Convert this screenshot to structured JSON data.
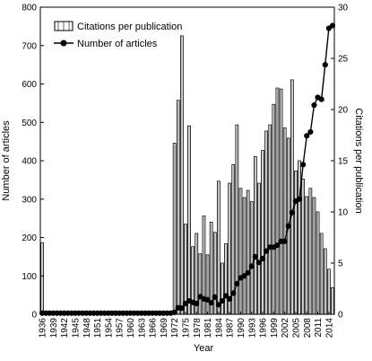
{
  "chart_data": {
    "type": "bar",
    "xlabel": "Year",
    "ylabel_left": "Number of articles",
    "ylabel_right": "Citations per publication",
    "ylim_left": [
      0,
      800
    ],
    "ylim_right": [
      0,
      30
    ],
    "yticks_left": [
      "0",
      "100",
      "200",
      "300",
      "400",
      "500",
      "600",
      "700",
      "800"
    ],
    "yticks_right": [
      "0",
      "5",
      "10",
      "15",
      "20",
      "25",
      "30"
    ],
    "xticks": [
      "1936",
      "1939",
      "1942",
      "1945",
      "1948",
      "1951",
      "1954",
      "1957",
      "1960",
      "1963",
      "1966",
      "1969",
      "1972",
      "1975",
      "1978",
      "1981",
      "1984",
      "1987",
      "1990",
      "1993",
      "1996",
      "1999",
      "2002",
      "2005",
      "2008",
      "2011",
      "2014"
    ],
    "legend_position": "top-left",
    "x": [
      1936,
      1937,
      1938,
      1939,
      1940,
      1941,
      1942,
      1943,
      1944,
      1945,
      1946,
      1947,
      1948,
      1949,
      1950,
      1951,
      1952,
      1953,
      1954,
      1955,
      1956,
      1957,
      1958,
      1959,
      1960,
      1961,
      1962,
      1963,
      1964,
      1965,
      1966,
      1967,
      1968,
      1969,
      1970,
      1971,
      1972,
      1973,
      1974,
      1975,
      1976,
      1977,
      1978,
      1979,
      1980,
      1981,
      1982,
      1983,
      1984,
      1985,
      1986,
      1987,
      1988,
      1989,
      1990,
      1991,
      1992,
      1993,
      1994,
      1995,
      1996,
      1997,
      1998,
      1999,
      2000,
      2001,
      2002,
      2003,
      2004,
      2005,
      2006,
      2007,
      2008,
      2009,
      2010,
      2011,
      2012,
      2013,
      2014,
      2015
    ],
    "series": [
      {
        "name": "Citations per publication",
        "axis": "right",
        "render": "bar",
        "values": [
          7,
          0,
          0,
          0,
          0,
          0,
          0,
          0,
          0,
          0,
          0,
          0,
          0,
          0,
          0,
          0,
          0,
          0,
          0,
          0,
          0,
          0,
          0,
          0,
          0,
          0,
          0,
          0,
          0,
          0,
          0,
          0,
          0,
          0,
          0,
          0,
          16.7,
          20.9,
          27.2,
          8.8,
          18.4,
          6.6,
          7.9,
          5.9,
          9.6,
          5.8,
          9.0,
          8.0,
          13.0,
          5.0,
          6.9,
          12.8,
          14.6,
          18.5,
          12.3,
          11.4,
          12.1,
          11.0,
          15.4,
          12.8,
          16.0,
          17.9,
          18.5,
          20.5,
          22.1,
          22.0,
          18.2,
          17.2,
          22.9,
          14.0,
          15.0,
          13.2,
          11.5,
          12.3,
          11.4,
          10.0,
          7.9,
          6.4,
          4.4,
          2.6
        ]
      },
      {
        "name": "Number of articles",
        "axis": "left",
        "render": "line",
        "values": [
          3,
          3,
          3,
          3,
          3,
          3,
          3,
          3,
          3,
          3,
          3,
          3,
          3,
          3,
          3,
          3,
          3,
          3,
          3,
          3,
          3,
          3,
          3,
          3,
          3,
          3,
          3,
          3,
          3,
          3,
          3,
          3,
          3,
          3,
          3,
          3,
          5,
          17,
          16,
          28,
          35,
          31,
          28,
          46,
          40,
          38,
          30,
          45,
          25,
          35,
          48,
          40,
          55,
          80,
          95,
          100,
          108,
          125,
          150,
          135,
          145,
          165,
          175,
          175,
          180,
          190,
          190,
          230,
          265,
          295,
          300,
          390,
          465,
          475,
          545,
          565,
          560,
          650,
          745,
          752
        ]
      }
    ]
  }
}
